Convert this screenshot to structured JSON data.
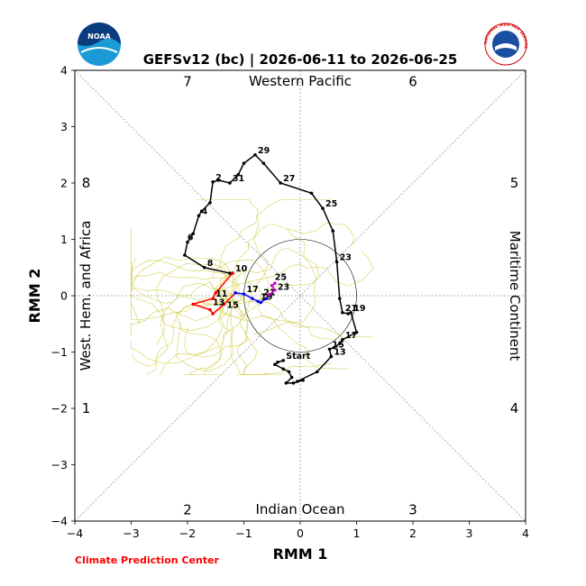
{
  "chart_data": {
    "type": "line",
    "title": "GEFSv12 (bc) | 2026-06-11 to 2026-06-25",
    "xlabel": "RMM 1",
    "ylabel": "RMM 2",
    "xlim": [
      -4,
      4
    ],
    "ylim": [
      -4,
      4
    ],
    "x_ticks": [
      "−4",
      "−3",
      "−2",
      "−1",
      "0",
      "1",
      "2",
      "3",
      "4"
    ],
    "y_ticks": [
      "−4",
      "−3",
      "−2",
      "−1",
      "0",
      "1",
      "2",
      "3",
      "4"
    ],
    "phase_labels": [
      {
        "text": "1",
        "x": -3.8,
        "y": -2.0
      },
      {
        "text": "2",
        "x": -2.0,
        "y": -3.8
      },
      {
        "text": "3",
        "x": 2.0,
        "y": -3.8
      },
      {
        "text": "4",
        "x": 3.8,
        "y": -2.0
      },
      {
        "text": "5",
        "x": 3.8,
        "y": 2.0
      },
      {
        "text": "6",
        "x": 2.0,
        "y": 3.8
      },
      {
        "text": "7",
        "x": -2.0,
        "y": 3.8
      },
      {
        "text": "8",
        "x": -3.8,
        "y": 2.0
      }
    ],
    "region_labels": {
      "top": "Western Pacific",
      "bottom": "Indian Ocean",
      "left": "West. Hem. and Africa",
      "right": "Maritime Continent"
    },
    "unit_circle_radius": 1,
    "series": [
      {
        "color": "#000000",
        "points": [
          [
            -0.3,
            -1.15
          ],
          [
            -0.4,
            -1.18
          ],
          [
            -0.45,
            -1.22
          ],
          [
            -0.3,
            -1.3
          ],
          [
            -0.2,
            -1.35
          ],
          [
            -0.15,
            -1.45
          ],
          [
            -0.25,
            -1.55
          ],
          [
            -0.12,
            -1.55
          ],
          [
            0.05,
            -1.5
          ],
          [
            -0.05,
            -1.52
          ],
          [
            0.3,
            -1.35
          ],
          [
            0.55,
            -1.08
          ],
          [
            0.52,
            -0.95
          ],
          [
            0.6,
            -0.92
          ],
          [
            0.7,
            -0.85
          ],
          [
            0.75,
            -0.78
          ],
          [
            1.0,
            -0.65
          ],
          [
            0.9,
            -0.3
          ],
          [
            0.85,
            -0.32
          ],
          [
            0.75,
            -0.3
          ],
          [
            0.7,
            -0.05
          ],
          [
            0.65,
            0.6
          ],
          [
            0.58,
            1.15
          ],
          [
            0.4,
            1.55
          ],
          [
            0.2,
            1.82
          ],
          [
            -0.35,
            2.0
          ],
          [
            -0.65,
            2.35
          ],
          [
            -0.8,
            2.5
          ],
          [
            -1.0,
            2.35
          ],
          [
            -1.1,
            2.15
          ],
          [
            -1.25,
            2.0
          ],
          [
            -1.45,
            2.05
          ],
          [
            -1.55,
            2.02
          ],
          [
            -1.6,
            1.65
          ],
          [
            -1.75,
            1.5
          ],
          [
            -1.8,
            1.42
          ],
          [
            -1.9,
            1.1
          ],
          [
            -2.0,
            0.95
          ],
          [
            -2.05,
            0.72
          ],
          [
            -1.7,
            0.5
          ],
          [
            -1.25,
            0.4
          ],
          [
            -1.2,
            0.4
          ]
        ],
        "labels": [
          {
            "text": "Start",
            "x": -0.3,
            "y": -1.15
          },
          {
            "text": "13",
            "x": 0.55,
            "y": -1.08
          },
          {
            "text": "15",
            "x": 0.52,
            "y": -0.95
          },
          {
            "text": "17",
            "x": 0.75,
            "y": -0.78
          },
          {
            "text": "19",
            "x": 0.9,
            "y": -0.3
          },
          {
            "text": "21",
            "x": 0.75,
            "y": -0.3
          },
          {
            "text": "23",
            "x": 0.65,
            "y": 0.6
          },
          {
            "text": "25",
            "x": 0.4,
            "y": 1.55
          },
          {
            "text": "27",
            "x": -0.35,
            "y": 2.0
          },
          {
            "text": "29",
            "x": -0.8,
            "y": 2.5
          },
          {
            "text": "31",
            "x": -1.25,
            "y": 2.0
          },
          {
            "text": "2",
            "x": -1.55,
            "y": 2.02
          },
          {
            "text": "4",
            "x": -1.8,
            "y": 1.42
          },
          {
            "text": "6",
            "x": -2.05,
            "y": 0.95
          },
          {
            "text": "8",
            "x": -1.7,
            "y": 0.5
          },
          {
            "text": "10",
            "x": -1.2,
            "y": 0.4
          }
        ]
      },
      {
        "color": "#ff0000",
        "points": [
          [
            -1.2,
            0.4
          ],
          [
            -1.5,
            0.05
          ],
          [
            -1.55,
            -0.05
          ],
          [
            -1.9,
            -0.15
          ],
          [
            -1.6,
            -0.25
          ],
          [
            -1.55,
            -0.32
          ],
          [
            -1.35,
            -0.15
          ],
          [
            -1.15,
            0.05
          ]
        ],
        "labels": [
          {
            "text": "11",
            "x": -1.55,
            "y": -0.05
          },
          {
            "text": "13",
            "x": -1.6,
            "y": -0.2
          },
          {
            "text": "15",
            "x": -1.35,
            "y": -0.25
          }
        ]
      },
      {
        "color": "#0000ff",
        "points": [
          [
            -1.15,
            0.05
          ],
          [
            -1.0,
            0.03
          ],
          [
            -0.85,
            -0.05
          ],
          [
            -0.75,
            -0.1
          ],
          [
            -0.7,
            -0.12
          ],
          [
            -0.6,
            -0.05
          ],
          [
            -0.55,
            0.02
          ]
        ],
        "labels": [
          {
            "text": "17",
            "x": -1.0,
            "y": 0.03
          },
          {
            "text": "19",
            "x": -0.75,
            "y": -0.1
          },
          {
            "text": "21",
            "x": -0.7,
            "y": -0.02
          }
        ]
      },
      {
        "color": "#cc00cc",
        "points": [
          [
            -0.55,
            0.02
          ],
          [
            -0.45,
            0.1
          ],
          [
            -0.5,
            0.18
          ],
          [
            -0.45,
            0.22
          ]
        ],
        "labels": [
          {
            "text": "23",
            "x": -0.45,
            "y": 0.07
          },
          {
            "text": "25",
            "x": -0.5,
            "y": 0.25
          }
        ]
      }
    ],
    "ensemble_color": "#cccc44"
  },
  "logos": {
    "left": "NOAA",
    "right": "NATIONAL WEATHER SERVICE"
  },
  "credit": "Climate Prediction Center",
  "credit_color": "#ff0000"
}
